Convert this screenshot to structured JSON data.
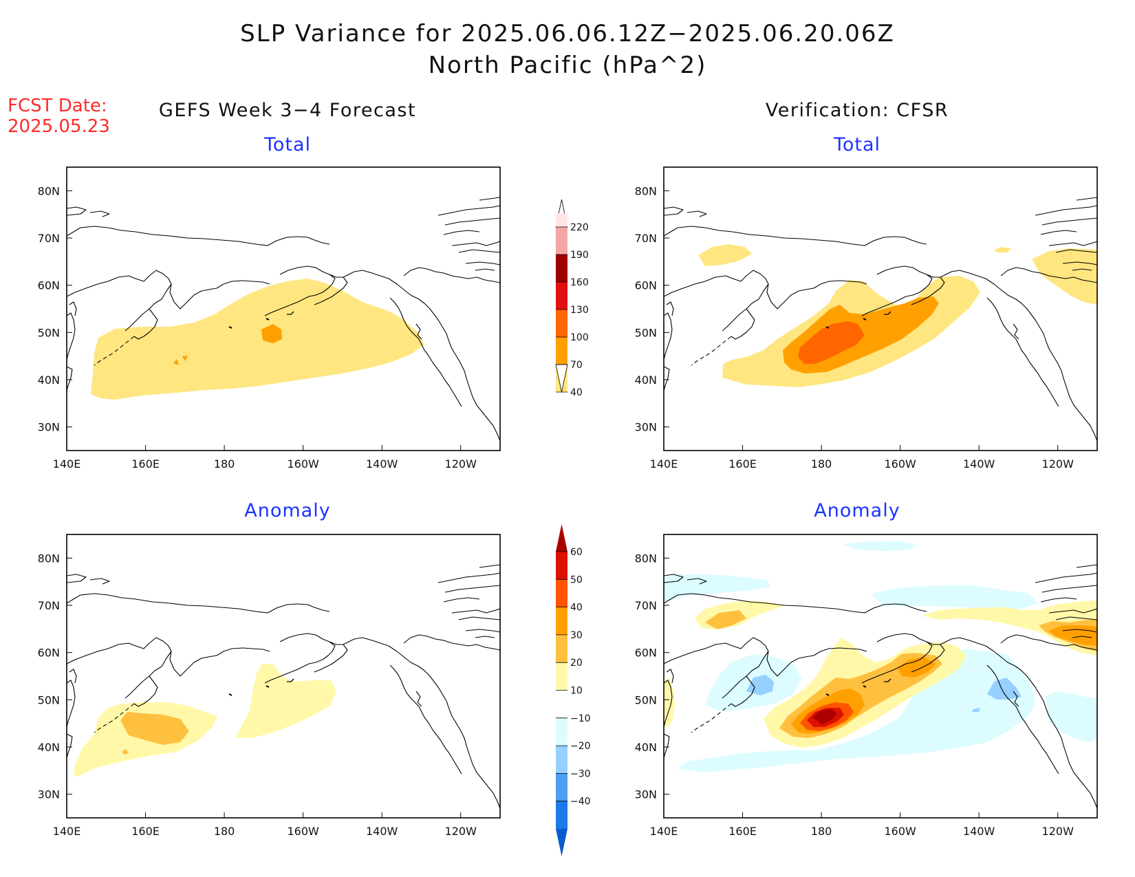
{
  "title": "SLP Variance for 2025.06.06.12Z−2025.06.20.06Z",
  "subtitle": "North Pacific (hPa^2)",
  "fcst_date_label": "FCST Date:",
  "fcst_date": "2025.05.23",
  "columns": {
    "left": "GEFS Week 3−4 Forecast",
    "right": "Verification: CFSR"
  },
  "panel_titles": {
    "total": "Total",
    "anomaly": "Anomaly"
  },
  "axes": {
    "x_ticks": [
      "140E",
      "160E",
      "180",
      "160W",
      "140W",
      "120W"
    ],
    "y_ticks": [
      "80N",
      "70N",
      "60N",
      "50N",
      "40N",
      "30N"
    ],
    "lon_range": [
      140,
      250
    ],
    "lat_range": [
      25,
      85
    ]
  },
  "colorbar_total": {
    "levels": [
      "220",
      "190",
      "160",
      "130",
      "100",
      "70",
      "40"
    ],
    "colors": [
      "#ffe6e6",
      "#f4a6a6",
      "#a00000",
      "#e01010",
      "#ff6600",
      "#ffa000",
      "#ffe680"
    ]
  },
  "colorbar_anomaly": {
    "levels": [
      "60",
      "50",
      "40",
      "30",
      "20",
      "10",
      "−10",
      "−20",
      "−30",
      "−40"
    ],
    "colors": [
      "#aa0000",
      "#dd1100",
      "#ff5500",
      "#ffa000",
      "#ffc040",
      "#fff8a8",
      "#ffffff",
      "#dcfcff",
      "#96d0ff",
      "#4ca0f0",
      "#1d7ae8",
      "#0a5ad0"
    ]
  },
  "colors": {
    "yellow": "#ffe680",
    "light_orange": "#ffa000",
    "orange": "#ff6600",
    "red": "#e01010",
    "dark_red": "#a00000",
    "anom_pale": "#fff8a8",
    "anom_light": "#ffc040",
    "anom_orange": "#ffa000",
    "anom_dorange": "#ff5500",
    "anom_red": "#dd1100",
    "anom_dred": "#aa0000",
    "anom_lblue": "#dcfcff",
    "anom_mblue": "#96d0ff",
    "fcst_red": "#ff2a2a",
    "title_blue": "#1a33ff"
  }
}
